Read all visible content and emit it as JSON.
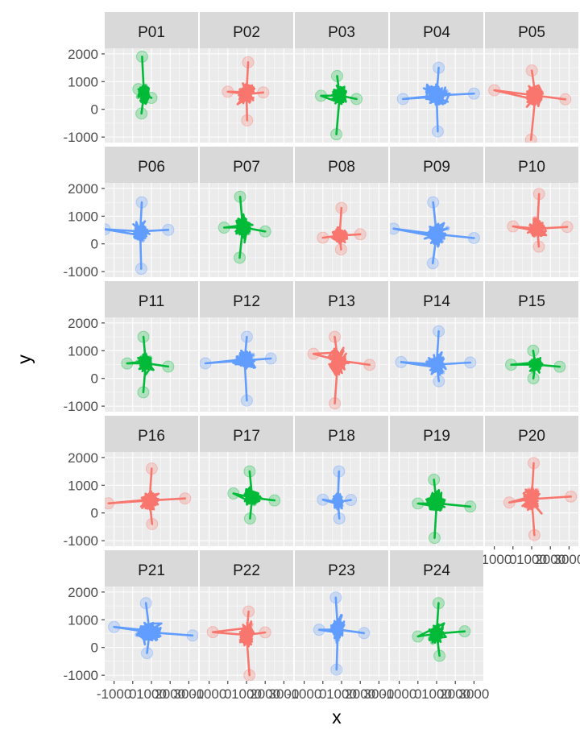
{
  "chart_data": {
    "type": "scatter",
    "xlabel": "x",
    "ylabel": "y",
    "x_ticks": [
      "-1000",
      "0",
      "1000",
      "2000",
      "3000"
    ],
    "y_ticks": [
      "-1000",
      "0",
      "1000",
      "2000"
    ],
    "xlim": [
      -1500,
      3500
    ],
    "ylim": [
      -1200,
      2200
    ],
    "grid": true,
    "legend": "none",
    "colors": {
      "red": "#F8766D",
      "green": "#00BA38",
      "blue": "#619CFF"
    },
    "panels": [
      {
        "label": "P01",
        "color": "green",
        "cx": 600,
        "cy": 550,
        "sx": 300,
        "sy": 380,
        "xmin": 300,
        "xmax": 1000,
        "ymin": -150,
        "ymax": 1900
      },
      {
        "label": "P02",
        "color": "red",
        "cx": 1000,
        "cy": 550,
        "sx": 500,
        "sy": 400,
        "xmin": 0,
        "xmax": 1900,
        "ymin": -400,
        "ymax": 1700
      },
      {
        "label": "P03",
        "color": "green",
        "cx": 900,
        "cy": 500,
        "sx": 420,
        "sy": 360,
        "xmin": -100,
        "xmax": 1800,
        "ymin": -900,
        "ymax": 1200
      },
      {
        "label": "P04",
        "color": "blue",
        "cx": 1000,
        "cy": 500,
        "sx": 650,
        "sy": 450,
        "xmin": -800,
        "xmax": 3000,
        "ymin": -800,
        "ymax": 1500
      },
      {
        "label": "P05",
        "color": "red",
        "cx": 1200,
        "cy": 500,
        "sx": 600,
        "sy": 400,
        "xmin": -1000,
        "xmax": 2800,
        "ymin": -1100,
        "ymax": 1400
      },
      {
        "label": "P06",
        "color": "blue",
        "cx": 400,
        "cy": 450,
        "sx": 450,
        "sy": 350,
        "xmin": -1500,
        "xmax": 1900,
        "ymin": -900,
        "ymax": 1500
      },
      {
        "label": "P07",
        "color": "green",
        "cx": 800,
        "cy": 600,
        "sx": 450,
        "sy": 450,
        "xmin": -200,
        "xmax": 2000,
        "ymin": -500,
        "ymax": 1700
      },
      {
        "label": "P08",
        "color": "red",
        "cx": 900,
        "cy": 300,
        "sx": 500,
        "sy": 280,
        "xmin": 0,
        "xmax": 2000,
        "ymin": -200,
        "ymax": 1300
      },
      {
        "label": "P09",
        "color": "blue",
        "cx": 1000,
        "cy": 350,
        "sx": 600,
        "sy": 420,
        "xmin": -1300,
        "xmax": 3000,
        "ymin": -700,
        "ymax": 1500
      },
      {
        "label": "P10",
        "color": "red",
        "cx": 1300,
        "cy": 550,
        "sx": 500,
        "sy": 360,
        "xmin": 0,
        "xmax": 2900,
        "ymin": -100,
        "ymax": 1800
      },
      {
        "label": "P11",
        "color": "green",
        "cx": 700,
        "cy": 550,
        "sx": 420,
        "sy": 380,
        "xmin": -300,
        "xmax": 1900,
        "ymin": -500,
        "ymax": 1500
      },
      {
        "label": "P12",
        "color": "blue",
        "cx": 900,
        "cy": 650,
        "sx": 600,
        "sy": 380,
        "xmin": -1200,
        "xmax": 2300,
        "ymin": -800,
        "ymax": 1500
      },
      {
        "label": "P13",
        "color": "red",
        "cx": 800,
        "cy": 650,
        "sx": 550,
        "sy": 500,
        "xmin": -500,
        "xmax": 2500,
        "ymin": -900,
        "ymax": 1500
      },
      {
        "label": "P14",
        "color": "blue",
        "cx": 1000,
        "cy": 500,
        "sx": 550,
        "sy": 400,
        "xmin": -900,
        "xmax": 2800,
        "ymin": -100,
        "ymax": 1700
      },
      {
        "label": "P15",
        "color": "green",
        "cx": 1200,
        "cy": 500,
        "sx": 400,
        "sy": 250,
        "xmin": -100,
        "xmax": 2500,
        "ymin": 0,
        "ymax": 1000
      },
      {
        "label": "P16",
        "color": "red",
        "cx": 900,
        "cy": 450,
        "sx": 550,
        "sy": 380,
        "xmin": -1300,
        "xmax": 2800,
        "ymin": -400,
        "ymax": 1600
      },
      {
        "label": "P17",
        "color": "green",
        "cx": 1300,
        "cy": 550,
        "sx": 450,
        "sy": 320,
        "xmin": 300,
        "xmax": 2500,
        "ymin": -200,
        "ymax": 1500
      },
      {
        "label": "P18",
        "color": "blue",
        "cx": 800,
        "cy": 400,
        "sx": 300,
        "sy": 350,
        "xmin": 0,
        "xmax": 1500,
        "ymin": -200,
        "ymax": 1500
      },
      {
        "label": "P19",
        "color": "green",
        "cx": 1000,
        "cy": 350,
        "sx": 500,
        "sy": 400,
        "xmin": 0,
        "xmax": 2800,
        "ymin": -900,
        "ymax": 1200
      },
      {
        "label": "P20",
        "color": "red",
        "cx": 1000,
        "cy": 500,
        "sx": 500,
        "sy": 450,
        "xmin": -200,
        "xmax": 3100,
        "ymin": -800,
        "ymax": 1800
      },
      {
        "label": "P21",
        "color": "blue",
        "cx": 900,
        "cy": 550,
        "sx": 700,
        "sy": 400,
        "xmin": -1000,
        "xmax": 3200,
        "ymin": -200,
        "ymax": 1600
      },
      {
        "label": "P22",
        "color": "red",
        "cx": 1000,
        "cy": 450,
        "sx": 500,
        "sy": 450,
        "xmin": -800,
        "xmax": 2000,
        "ymin": -1000,
        "ymax": 1300
      },
      {
        "label": "P23",
        "color": "blue",
        "cx": 800,
        "cy": 650,
        "sx": 400,
        "sy": 450,
        "xmin": -200,
        "xmax": 2200,
        "ymin": -800,
        "ymax": 1800
      },
      {
        "label": "P24",
        "color": "green",
        "cx": 1000,
        "cy": 500,
        "sx": 450,
        "sy": 380,
        "xmin": 0,
        "xmax": 2500,
        "ymin": -300,
        "ymax": 1600
      }
    ]
  }
}
